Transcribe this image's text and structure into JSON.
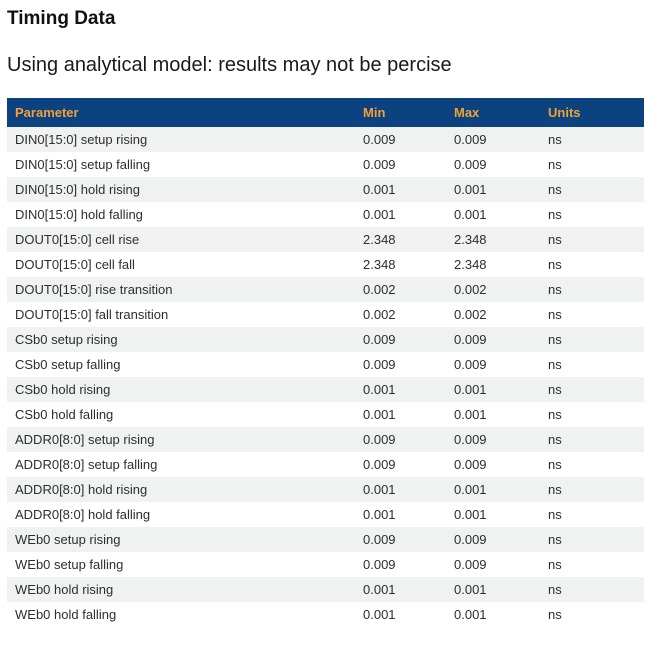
{
  "page": {
    "title": "Timing Data",
    "subtitle": "Using analytical model: results may not be percise"
  },
  "colors": {
    "header_bg": "#0d4281",
    "header_text": "#f0a235",
    "row_alt_bg": "#f0f1f1",
    "row_text": "#2e2e2e"
  },
  "table": {
    "columns": [
      "Parameter",
      "Min",
      "Max",
      "Units"
    ],
    "rows": [
      {
        "parameter": "DIN0[15:0] setup rising",
        "min": "0.009",
        "max": "0.009",
        "units": "ns"
      },
      {
        "parameter": "DIN0[15:0] setup falling",
        "min": "0.009",
        "max": "0.009",
        "units": "ns"
      },
      {
        "parameter": "DIN0[15:0] hold rising",
        "min": "0.001",
        "max": "0.001",
        "units": "ns"
      },
      {
        "parameter": "DIN0[15:0] hold falling",
        "min": "0.001",
        "max": "0.001",
        "units": "ns"
      },
      {
        "parameter": "DOUT0[15:0] cell rise",
        "min": "2.348",
        "max": "2.348",
        "units": "ns"
      },
      {
        "parameter": "DOUT0[15:0] cell fall",
        "min": "2.348",
        "max": "2.348",
        "units": "ns"
      },
      {
        "parameter": "DOUT0[15:0] rise transition",
        "min": "0.002",
        "max": "0.002",
        "units": "ns"
      },
      {
        "parameter": "DOUT0[15:0] fall transition",
        "min": "0.002",
        "max": "0.002",
        "units": "ns"
      },
      {
        "parameter": "CSb0 setup rising",
        "min": "0.009",
        "max": "0.009",
        "units": "ns"
      },
      {
        "parameter": "CSb0 setup falling",
        "min": "0.009",
        "max": "0.009",
        "units": "ns"
      },
      {
        "parameter": "CSb0 hold rising",
        "min": "0.001",
        "max": "0.001",
        "units": "ns"
      },
      {
        "parameter": "CSb0 hold falling",
        "min": "0.001",
        "max": "0.001",
        "units": "ns"
      },
      {
        "parameter": "ADDR0[8:0] setup rising",
        "min": "0.009",
        "max": "0.009",
        "units": "ns"
      },
      {
        "parameter": "ADDR0[8:0] setup falling",
        "min": "0.009",
        "max": "0.009",
        "units": "ns"
      },
      {
        "parameter": "ADDR0[8:0] hold rising",
        "min": "0.001",
        "max": "0.001",
        "units": "ns"
      },
      {
        "parameter": "ADDR0[8:0] hold falling",
        "min": "0.001",
        "max": "0.001",
        "units": "ns"
      },
      {
        "parameter": "WEb0 setup rising",
        "min": "0.009",
        "max": "0.009",
        "units": "ns"
      },
      {
        "parameter": "WEb0 setup falling",
        "min": "0.009",
        "max": "0.009",
        "units": "ns"
      },
      {
        "parameter": "WEb0 hold rising",
        "min": "0.001",
        "max": "0.001",
        "units": "ns"
      },
      {
        "parameter": "WEb0 hold falling",
        "min": "0.001",
        "max": "0.001",
        "units": "ns"
      }
    ]
  }
}
